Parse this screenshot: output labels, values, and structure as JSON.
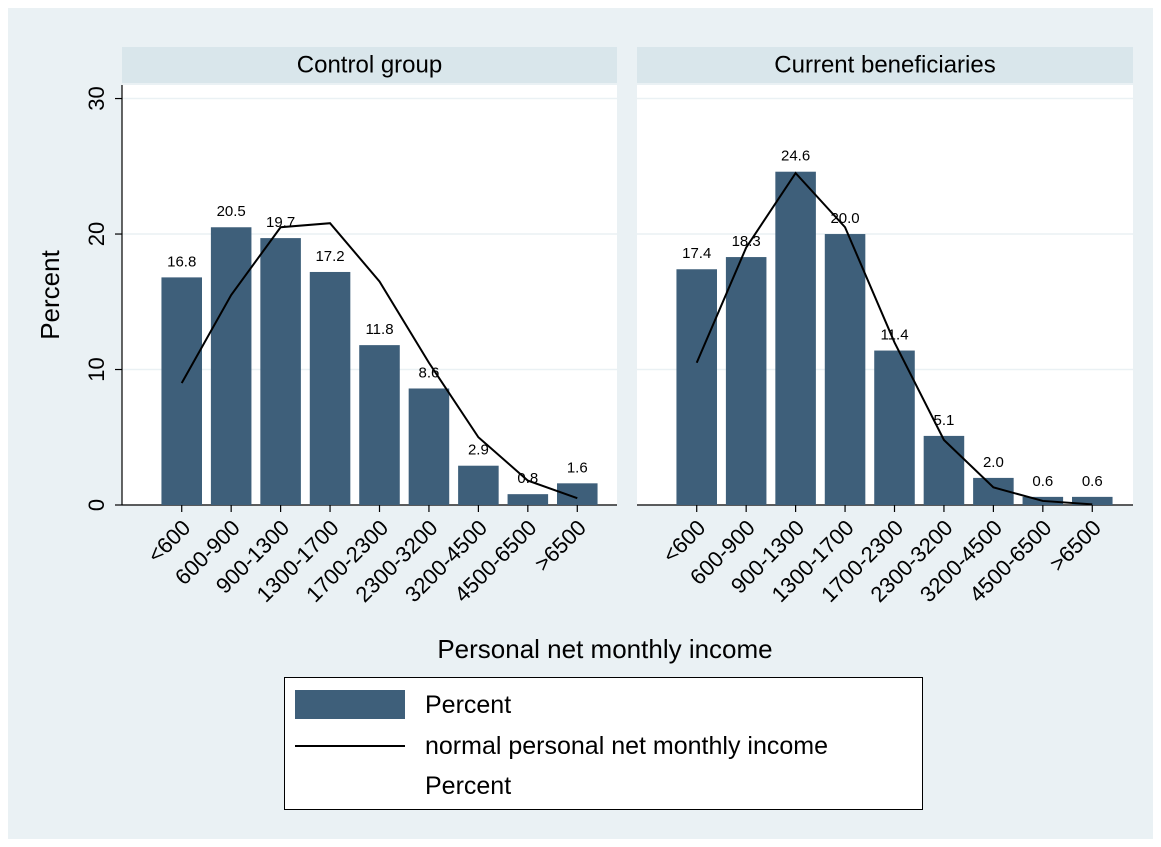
{
  "x_label": "Personal net monthly income",
  "chart_data": [
    {
      "type": "bar",
      "title": "Control group",
      "y_label": "Percent",
      "categories": [
        "<600",
        "600-900",
        "900-1300",
        "1300-1700",
        "1700-2300",
        "2300-3200",
        "3200-4500",
        "4500-6500",
        ">6500"
      ],
      "series": [
        {
          "name": "Percent",
          "type": "bar",
          "color": "#3e5f7a",
          "values": [
            16.8,
            20.5,
            19.7,
            17.2,
            11.8,
            8.6,
            2.9,
            0.8,
            1.6
          ],
          "value_labels": [
            "16.8",
            "20.5",
            "19.7",
            "17.2",
            "11.8",
            "8.6",
            "2.9",
            "0.8",
            "1.6"
          ]
        },
        {
          "name": "normal personal net monthly income Percent",
          "type": "line",
          "color": "#000000",
          "values": [
            9.0,
            15.5,
            20.5,
            20.8,
            16.5,
            10.5,
            5.0,
            1.8,
            0.5
          ]
        }
      ],
      "ylim": [
        0,
        31
      ],
      "yticks": [
        0,
        10,
        20,
        30
      ],
      "grid": true
    },
    {
      "type": "bar",
      "title": "Current beneficiaries",
      "categories": [
        "<600",
        "600-900",
        "900-1300",
        "1300-1700",
        "1700-2300",
        "2300-3200",
        "3200-4500",
        "4500-6500",
        ">6500"
      ],
      "series": [
        {
          "name": "Percent",
          "type": "bar",
          "color": "#3e5f7a",
          "values": [
            17.4,
            18.3,
            24.6,
            20.0,
            11.4,
            5.1,
            2.0,
            0.6,
            0.6
          ],
          "value_labels": [
            "17.4",
            "18.3",
            "24.6",
            "20.0",
            "11.4",
            "5.1",
            "2.0",
            "0.6",
            "0.6"
          ]
        },
        {
          "name": "normal personal net monthly income Percent",
          "type": "line",
          "color": "#000000",
          "values": [
            10.5,
            19.0,
            24.5,
            20.5,
            12.0,
            4.8,
            1.3,
            0.3,
            0.05
          ]
        }
      ],
      "ylim": [
        0,
        31
      ],
      "yticks": [
        0,
        10,
        20,
        30
      ],
      "grid": true
    }
  ]
}
